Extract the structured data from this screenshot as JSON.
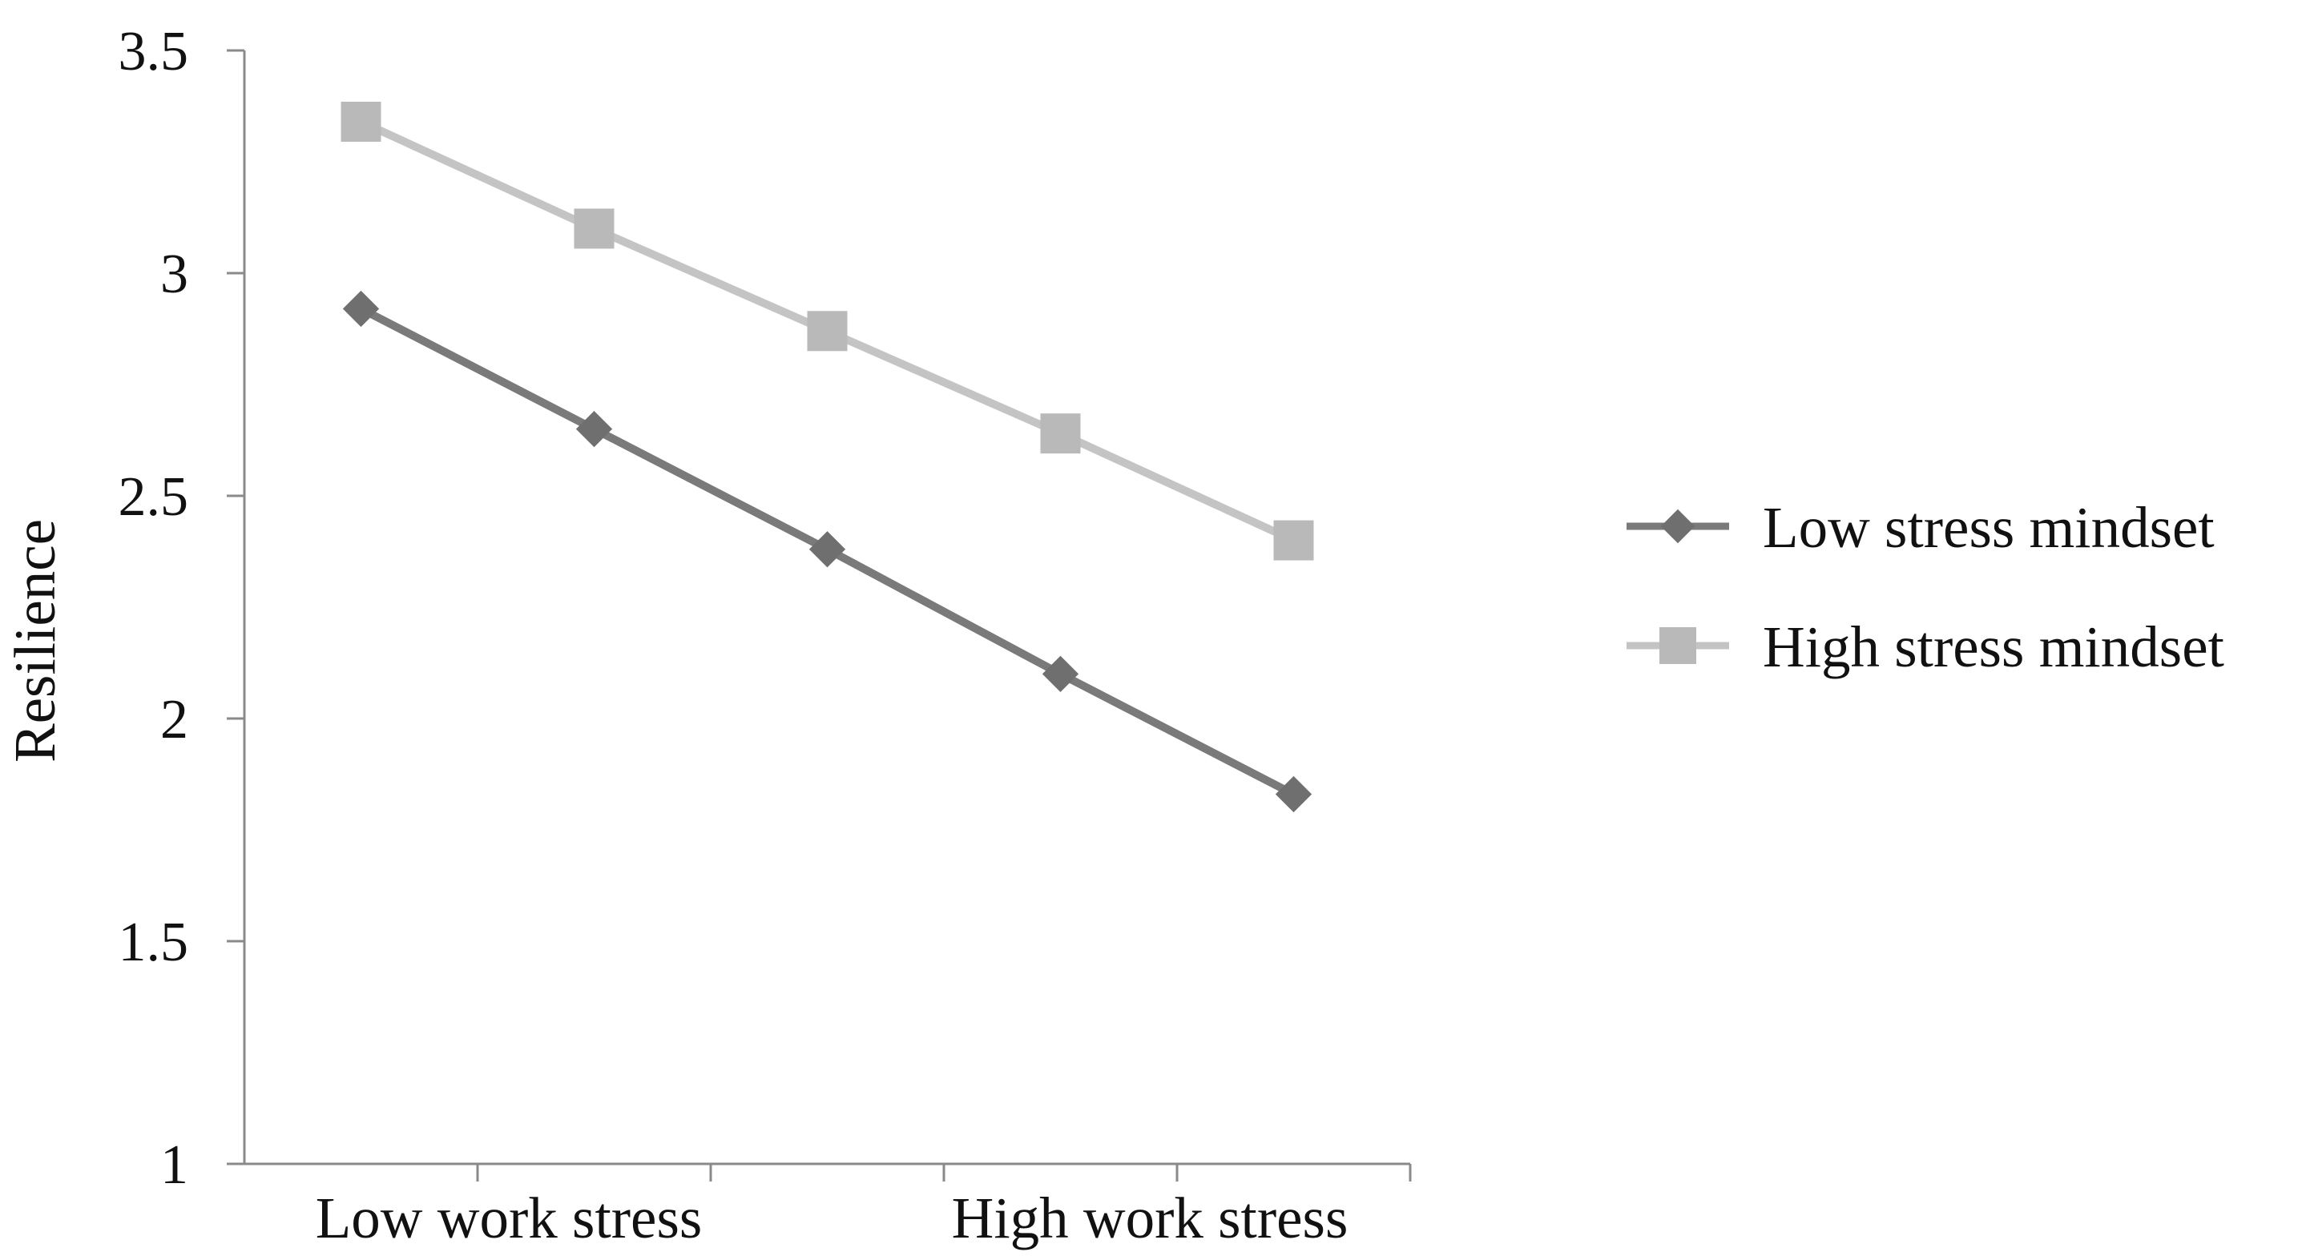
{
  "chart_data": {
    "type": "line",
    "title": "",
    "xlabel": "",
    "ylabel": "Resilience",
    "ylim": [
      1,
      3.5
    ],
    "yticks": [
      "1",
      "1.5",
      "2",
      "2.5",
      "3",
      "3.5"
    ],
    "x_tick_labels": [
      "Low work stress",
      "High work stress"
    ],
    "grid": false,
    "legend_position": "right",
    "series": [
      {
        "name": "Low stress mindset",
        "marker": "diamond",
        "color": "#7a7a7a",
        "values": [
          2.92,
          2.65,
          2.38,
          2.1,
          1.83
        ]
      },
      {
        "name": "High stress mindset",
        "marker": "square",
        "color": "#c4c4c4",
        "values": [
          3.34,
          3.1,
          2.87,
          2.64,
          2.4
        ]
      }
    ]
  }
}
